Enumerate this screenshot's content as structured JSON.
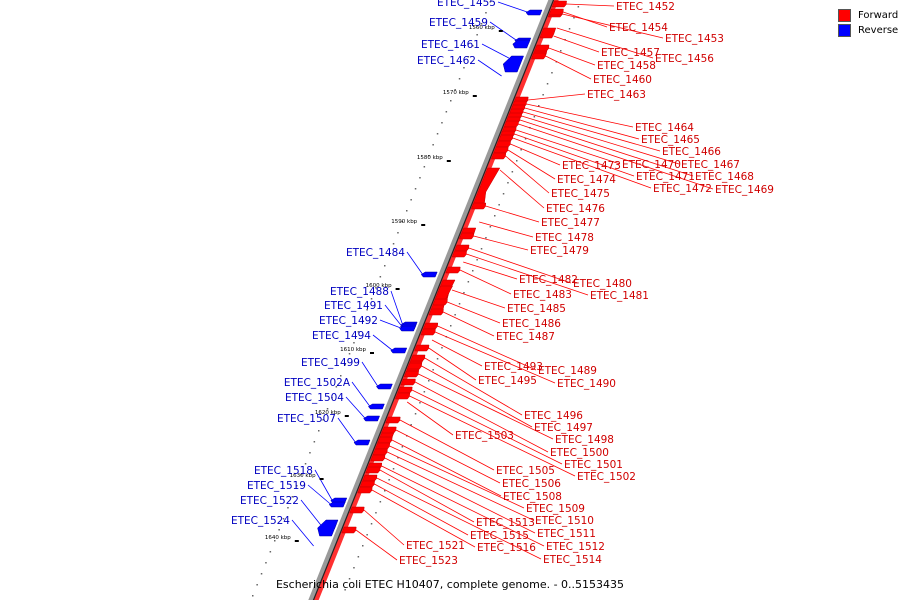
{
  "legend": {
    "forward_label": "Forward",
    "reverse_label": "Reverse",
    "forward_color": "#ff0000",
    "reverse_color": "#0000ff"
  },
  "caption": "Escherichia coli ETEC H10407, complete genome. - 0..5153435",
  "ticks": [
    "1560 kbp",
    "1570 kbp",
    "1580 kbp",
    "1590 kbp",
    "1600 kbp",
    "1610 kbp",
    "1620 kbp",
    "1630 kbp",
    "1640 kbp"
  ],
  "forward_genes": [
    "ETEC_1452",
    "ETEC_1453",
    "ETEC_1454",
    "ETEC_1456",
    "ETEC_1457",
    "ETEC_1458",
    "ETEC_1460",
    "ETEC_1463",
    "ETEC_1464",
    "ETEC_1465",
    "ETEC_1466",
    "ETEC_1467",
    "ETEC_1468",
    "ETEC_1469",
    "ETEC_1470",
    "ETEC_1471",
    "ETEC_1472",
    "ETEC_1473",
    "ETEC_1474",
    "ETEC_1475",
    "ETEC_1476",
    "ETEC_1477",
    "ETEC_1478",
    "ETEC_1479",
    "ETEC_1480",
    "ETEC_1481",
    "ETEC_1482",
    "ETEC_1483",
    "ETEC_1485",
    "ETEC_1486",
    "ETEC_1487",
    "ETEC_1489",
    "ETEC_1490",
    "ETEC_1493",
    "ETEC_1495",
    "ETEC_1496",
    "ETEC_1497",
    "ETEC_1498",
    "ETEC_1500",
    "ETEC_1501",
    "ETEC_1502",
    "ETEC_1503",
    "ETEC_1505",
    "ETEC_1506",
    "ETEC_1508",
    "ETEC_1509",
    "ETEC_1510",
    "ETEC_1511",
    "ETEC_1512",
    "ETEC_1513",
    "ETEC_1514",
    "ETEC_1515",
    "ETEC_1516",
    "ETEC_1521",
    "ETEC_1523"
  ],
  "reverse_genes": [
    "ETEC_1455",
    "ETEC_1459",
    "ETEC_1461",
    "ETEC_1462",
    "ETEC_1484",
    "ETEC_1488",
    "ETEC_1491",
    "ETEC_1492",
    "ETEC_1494",
    "ETEC_1499",
    "ETEC_1502A",
    "ETEC_1504",
    "ETEC_1507",
    "ETEC_1518",
    "ETEC_1519",
    "ETEC_1522",
    "ETEC_1524"
  ]
}
